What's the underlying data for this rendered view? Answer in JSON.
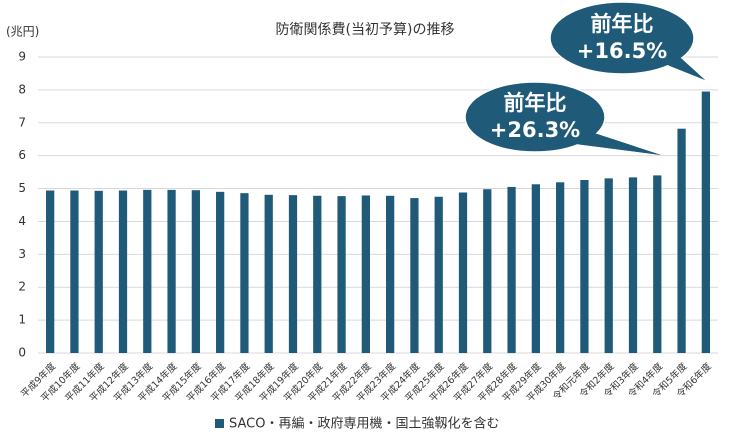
{
  "chart_data": {
    "type": "bar",
    "title": "防衛関係費(当初予算)の推移",
    "y_label": "(兆円)",
    "categories": [
      "平成9年度",
      "平成10年度",
      "平成11年度",
      "平成12年度",
      "平成13年度",
      "平成14年度",
      "平成15年度",
      "平成16年度",
      "平成17年度",
      "平成18年度",
      "平成19年度",
      "平成20年度",
      "平成21年度",
      "平成22年度",
      "平成23年度",
      "平成24年度",
      "平成25年度",
      "平成26年度",
      "平成27年度",
      "平成28年度",
      "平成29年度",
      "平成30年度",
      "令和元年度",
      "令和2年度",
      "令和3年度",
      "令和4年度",
      "令和5年度",
      "令和6年度"
    ],
    "series": [
      {
        "name": "SACO・再編・政府専用機・国土強靱化を含む",
        "color": "#1f5a78",
        "values": [
          4.94,
          4.94,
          4.93,
          4.94,
          4.96,
          4.96,
          4.95,
          4.9,
          4.86,
          4.81,
          4.8,
          4.78,
          4.77,
          4.79,
          4.78,
          4.71,
          4.75,
          4.88,
          4.98,
          5.05,
          5.13,
          5.19,
          5.26,
          5.31,
          5.34,
          5.4,
          6.82,
          7.95
        ]
      }
    ],
    "ylim": [
      0,
      9
    ],
    "yticks": [
      0,
      1,
      2,
      3,
      4,
      5,
      6,
      7,
      8,
      9
    ],
    "grid": true,
    "legend": "bottom",
    "annotations": [
      {
        "lines": [
          "前年比",
          "+26.3%"
        ],
        "color": "#1f5a78"
      },
      {
        "lines": [
          "前年比",
          "+16.5%"
        ],
        "color": "#1f5a78"
      }
    ]
  }
}
